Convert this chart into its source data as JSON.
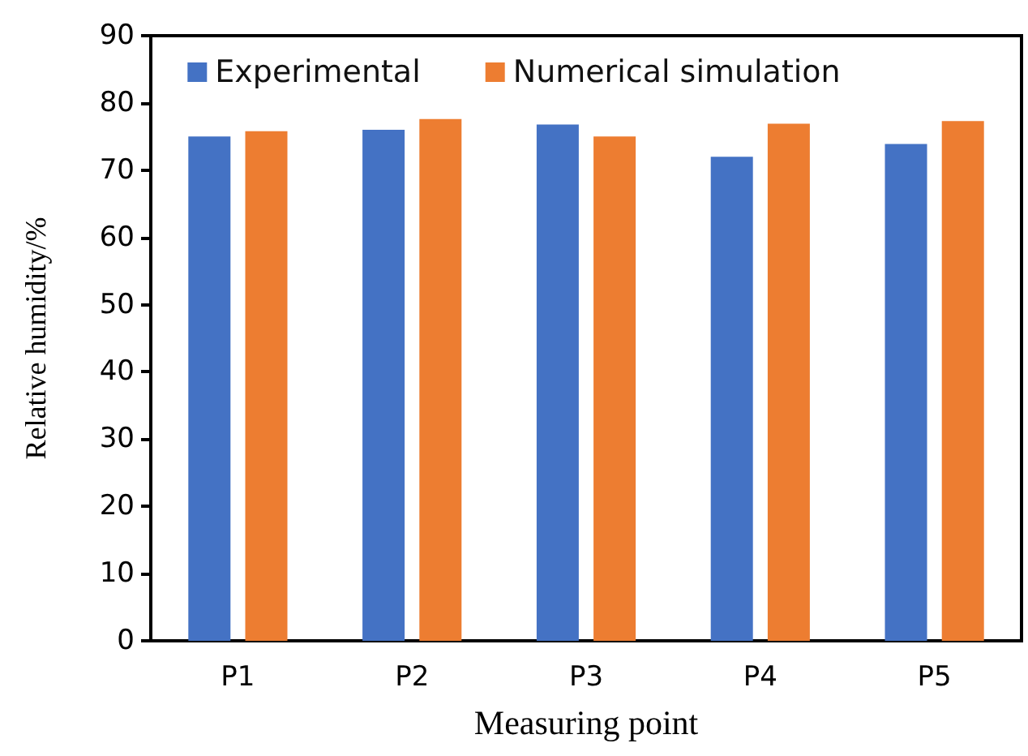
{
  "chart_data": {
    "type": "bar",
    "xlabel": "Measuring point",
    "ylabel": "Relative humidity/%",
    "categories": [
      "P1",
      "P2",
      "P3",
      "P4",
      "P5"
    ],
    "series": [
      {
        "name": "Experimental",
        "color": "#4472c4",
        "values": [
          75.0,
          76.0,
          76.8,
          72.0,
          73.9
        ]
      },
      {
        "name": "Numerical simulation",
        "color": "#ed7d31",
        "values": [
          75.8,
          77.6,
          75.0,
          76.9,
          77.3
        ]
      }
    ],
    "ylim": [
      0,
      90
    ],
    "yticks": [
      0,
      10,
      20,
      30,
      40,
      50,
      60,
      70,
      80,
      90
    ],
    "grid": false,
    "legend": "top"
  }
}
